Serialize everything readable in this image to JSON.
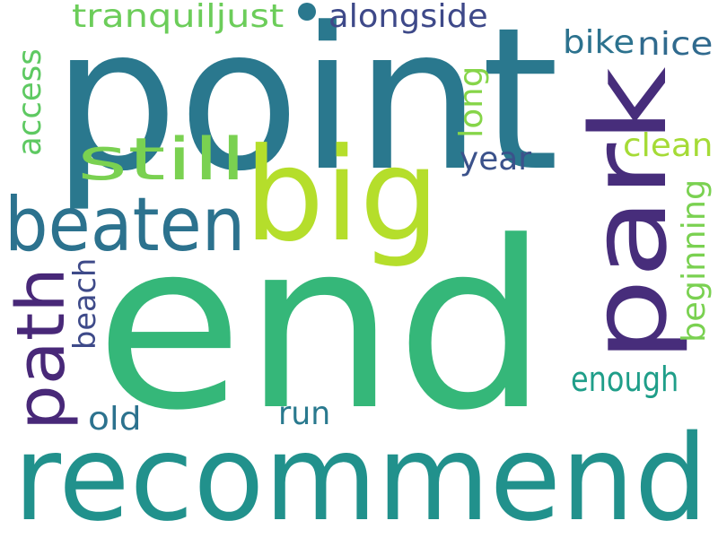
{
  "words": [
    {
      "id": "end",
      "text": "end",
      "color": "#35b779"
    },
    {
      "id": "recommend",
      "text": "recommend",
      "color": "#21918c"
    },
    {
      "id": "point",
      "text": "point",
      "color": "#2a788e"
    },
    {
      "id": "park",
      "text": "park",
      "color": "#472d7b"
    },
    {
      "id": "big",
      "text": "big",
      "color": "#b5de2b"
    },
    {
      "id": "beaten",
      "text": "beaten",
      "color": "#2c728e"
    },
    {
      "id": "still",
      "text": "still",
      "color": "#7ad151"
    },
    {
      "id": "path",
      "text": "path",
      "color": "#482878"
    },
    {
      "id": "tranquiljust",
      "text": "tranquiljust",
      "color": "#6ccd5a"
    },
    {
      "id": "alongside",
      "text": "alongside",
      "color": "#3e4989"
    },
    {
      "id": "bike",
      "text": "bike",
      "color": "#2c728e"
    },
    {
      "id": "nice",
      "text": "nice",
      "color": "#306a8e"
    },
    {
      "id": "access",
      "text": "access",
      "color": "#5ec962"
    },
    {
      "id": "long",
      "text": "long",
      "color": "#86d549"
    },
    {
      "id": "year",
      "text": "year",
      "color": "#3b528b"
    },
    {
      "id": "clean",
      "text": "clean",
      "color": "#a5db36"
    },
    {
      "id": "beginning",
      "text": "beginning",
      "color": "#7ad151"
    },
    {
      "id": "beach",
      "text": "beach",
      "color": "#3e4a89"
    },
    {
      "id": "enough",
      "text": "enough",
      "color": "#1f9e89"
    },
    {
      "id": "old",
      "text": "old",
      "color": "#2c728e"
    },
    {
      "id": "run",
      "text": "run",
      "color": "#29798e"
    }
  ],
  "dot_color": "#2a788e"
}
